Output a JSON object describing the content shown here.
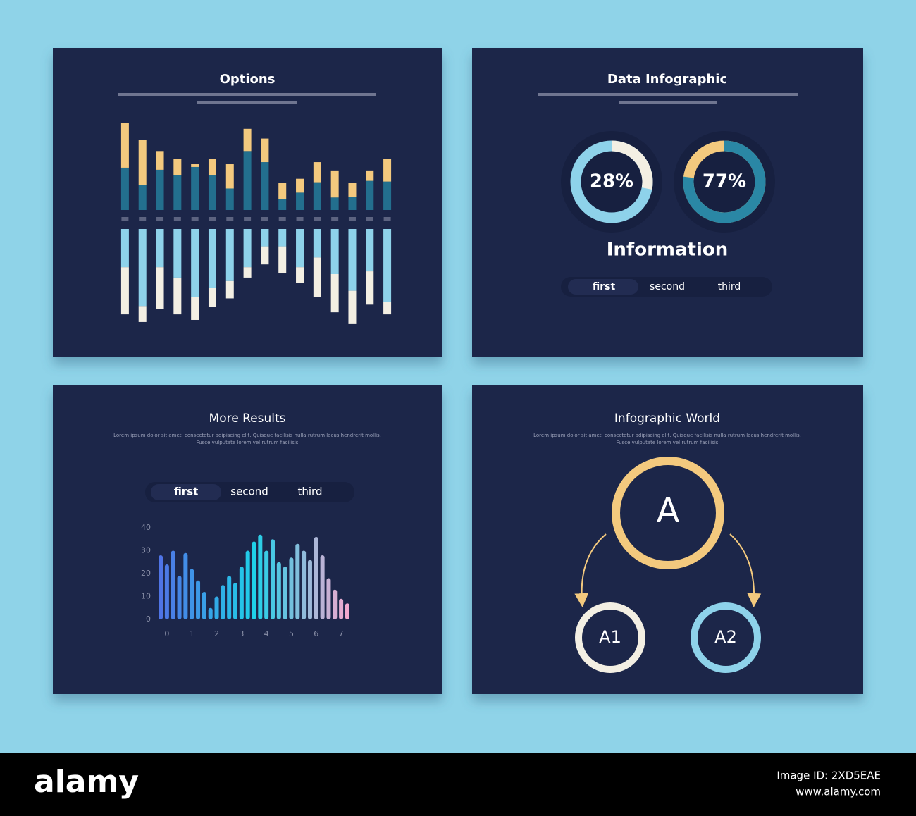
{
  "chart_data": [
    {
      "type": "diverging",
      "title": "Options",
      "ylim": [
        0,
        130
      ],
      "series": [
        {
          "side": "up",
          "color": "#236f8e",
          "values": [
            61,
            36,
            58,
            50,
            62,
            50,
            31,
            85,
            69,
            16,
            25,
            40,
            18,
            19,
            42,
            41
          ]
        },
        {
          "side": "up",
          "color": "#f3c97e",
          "values": [
            64,
            65,
            27,
            24,
            4,
            24,
            35,
            32,
            34,
            23,
            20,
            29,
            39,
            20,
            15,
            33
          ]
        },
        {
          "side": "down",
          "color": "#8ed2ea",
          "values": [
            55,
            111,
            55,
            70,
            98,
            85,
            75,
            55,
            25,
            25,
            55,
            41,
            65,
            89,
            61,
            105
          ]
        },
        {
          "side": "down",
          "color": "#f3efe3",
          "values": [
            68,
            23,
            60,
            53,
            33,
            27,
            25,
            15,
            26,
            39,
            23,
            57,
            55,
            48,
            48,
            18
          ]
        }
      ]
    },
    {
      "type": "donut",
      "title": "Data Infographic",
      "subtitle": "Information",
      "tabs": [
        "first",
        "second",
        "third"
      ],
      "values": [
        28,
        77
      ],
      "value_labels": [
        "28%",
        "77%"
      ],
      "colors": [
        "#f3efe3",
        "#2a87a5"
      ],
      "tracks": [
        "#8ed2ea",
        "#f3c97e"
      ]
    },
    {
      "type": "bar",
      "title": "More Results",
      "text": [
        "Lorem ipsum dolor sit amet, consectetur adipiscing elit. Quisque facilisis nulla rutrum lacus hendrerit mollis.",
        "Fusce vulputate lorem vel rutrum facilisis"
      ],
      "tabs": [
        "first",
        "second",
        "third"
      ],
      "x": [
        -0.25,
        0,
        0.25,
        0.5,
        0.75,
        1,
        1.25,
        1.5,
        1.75,
        2,
        2.25,
        2.5,
        2.75,
        3,
        3.25,
        3.5,
        3.75,
        4,
        4.25,
        4.5,
        4.75,
        5,
        5.25,
        5.5,
        5.75,
        6,
        6.25,
        6.5,
        6.75,
        7,
        7.25
      ],
      "values": [
        28,
        24,
        30,
        19,
        29,
        22,
        17,
        12,
        5,
        10,
        15,
        19,
        16,
        23,
        30,
        34,
        37,
        30,
        35,
        25,
        23,
        27,
        33,
        30,
        26,
        36,
        28,
        18,
        13,
        9,
        7
      ],
      "gradient": [
        "#4f74e6",
        "#1fd0e8",
        "#f2a9cf"
      ],
      "xlim": [
        -0.45,
        7.45
      ],
      "xticks": [
        0,
        1,
        2,
        3,
        4,
        5,
        6,
        7
      ],
      "ylim": [
        0,
        40
      ],
      "yticks": [
        0,
        10,
        20,
        30,
        40
      ]
    }
  ],
  "diagram": {
    "title": "Infographic World",
    "text": [
      "Lorem ipsum dolor sit amet, consectetur adipiscing elit. Quisque facilisis nulla rutrum lacus hendrerit mollis.",
      "Fusce vulputate lorem vel rutrum facilisis"
    ],
    "nodes": [
      {
        "label": "A"
      },
      {
        "label": "A1"
      },
      {
        "label": "A2"
      }
    ]
  },
  "footer": {
    "logo": "alamy",
    "image_id": "Image ID: 2XD5EAE",
    "site": "www.alamy.com"
  }
}
